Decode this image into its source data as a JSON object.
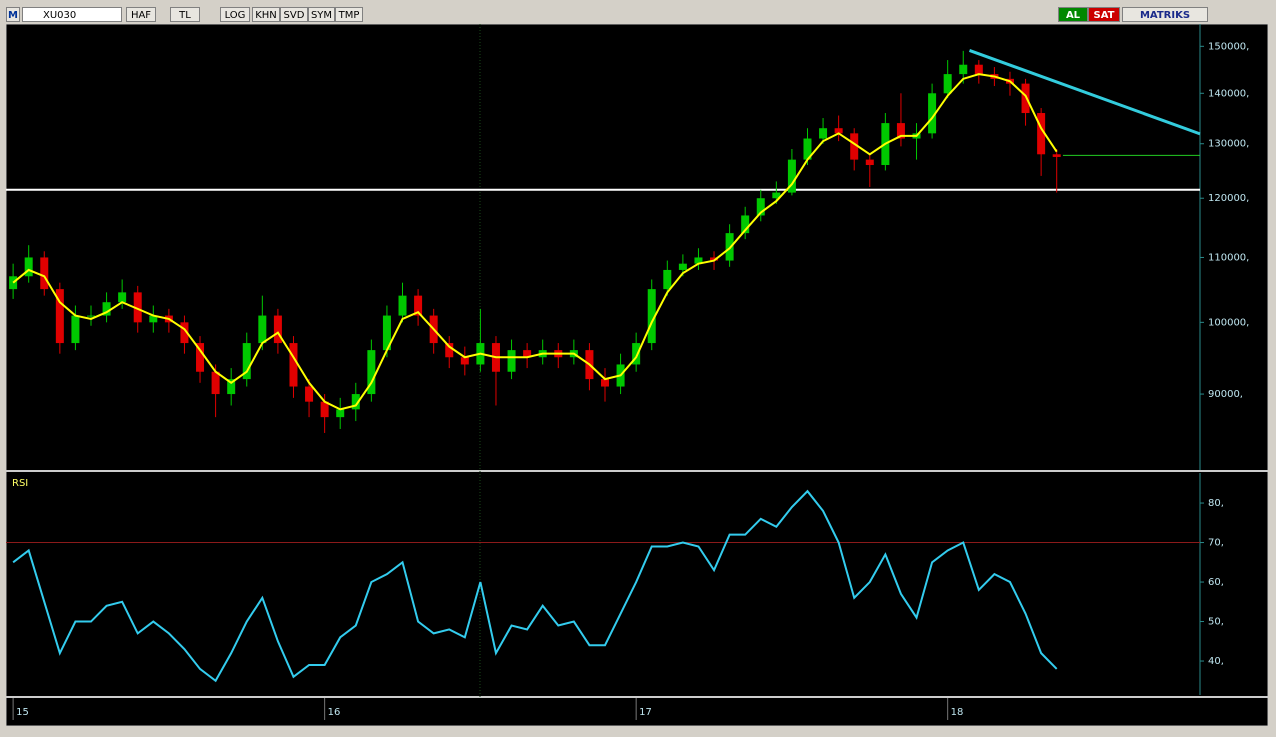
{
  "toolbar": {
    "logo": "M",
    "symbol": "XU030",
    "buttons": [
      "HAF",
      "TL",
      "LOG",
      "KHN",
      "SVD",
      "SYM",
      "TMP"
    ],
    "buy": "AL",
    "sell": "SAT",
    "brand": "MATRIKS"
  },
  "chart_data": [
    {
      "type": "candlestick",
      "log": true,
      "x": [
        15.0,
        15.05,
        15.1,
        15.15,
        15.2,
        15.25,
        15.3,
        15.35,
        15.4,
        15.45,
        15.5,
        15.55,
        15.6,
        15.65,
        15.7,
        15.75,
        15.8,
        15.85,
        15.9,
        15.95,
        16.0,
        16.05,
        16.1,
        16.15,
        16.2,
        16.25,
        16.3,
        16.35,
        16.4,
        16.45,
        16.5,
        16.55,
        16.6,
        16.65,
        16.7,
        16.75,
        16.8,
        16.85,
        16.9,
        16.95,
        17.0,
        17.05,
        17.1,
        17.15,
        17.2,
        17.25,
        17.3,
        17.35,
        17.4,
        17.45,
        17.5,
        17.55,
        17.6,
        17.65,
        17.7,
        17.75,
        17.8,
        17.85,
        17.9,
        17.95,
        18.0,
        18.05,
        18.1,
        18.15,
        18.2,
        18.25,
        18.3,
        18.35
      ],
      "open": [
        105000,
        107000,
        110000,
        105000,
        97000,
        101000,
        101000,
        103000,
        104500,
        100000,
        101000,
        100000,
        97000,
        93000,
        90000,
        92000,
        97000,
        101000,
        97000,
        91000,
        89000,
        87000,
        88000,
        90000,
        96000,
        101000,
        104000,
        101000,
        97000,
        95000,
        94000,
        97000,
        93000,
        96000,
        95000,
        96000,
        95000,
        96000,
        92000,
        91000,
        94000,
        97000,
        105000,
        108000,
        109000,
        110000,
        109500,
        114000,
        117000,
        120000,
        121000,
        127000,
        131000,
        133000,
        132000,
        127000,
        126000,
        134000,
        131000,
        132000,
        140000,
        144000,
        146000,
        144000,
        143000,
        142000,
        136000,
        128000
      ],
      "high": [
        109000,
        112000,
        111000,
        106000,
        102500,
        102500,
        104500,
        106500,
        105500,
        102500,
        102000,
        101000,
        98000,
        94000,
        93500,
        98500,
        104000,
        102000,
        98000,
        92000,
        90000,
        89500,
        91500,
        97500,
        102500,
        106000,
        105000,
        102000,
        98000,
        96500,
        102000,
        98000,
        97500,
        97000,
        97500,
        97000,
        97500,
        97000,
        93500,
        95500,
        98500,
        106500,
        109500,
        110500,
        111500,
        111000,
        115500,
        118500,
        121500,
        123000,
        129000,
        133000,
        135000,
        135500,
        133000,
        128000,
        136000,
        140000,
        134000,
        142000,
        147000,
        149000,
        147000,
        145500,
        144500,
        143000,
        137000,
        129000
      ],
      "low": [
        103500,
        106000,
        104000,
        95500,
        96000,
        99500,
        100000,
        102000,
        98500,
        98500,
        98500,
        95500,
        91500,
        87000,
        88500,
        91000,
        96000,
        95500,
        89500,
        87000,
        85000,
        85500,
        86500,
        89000,
        95000,
        100000,
        99500,
        95500,
        93500,
        92500,
        93000,
        88500,
        92000,
        93500,
        94000,
        93500,
        94000,
        90500,
        89000,
        90000,
        93000,
        96000,
        104000,
        107000,
        108000,
        108000,
        108500,
        113000,
        116000,
        119000,
        120500,
        126000,
        130000,
        130500,
        125000,
        122000,
        125000,
        129500,
        127000,
        131000,
        139000,
        142000,
        142000,
        141500,
        139500,
        133500,
        124000,
        121000
      ],
      "close": [
        107000,
        110000,
        105000,
        97000,
        101000,
        101000,
        103000,
        104500,
        100000,
        101000,
        100000,
        97000,
        93000,
        90000,
        92000,
        97000,
        101000,
        97000,
        91000,
        89000,
        87000,
        88000,
        90000,
        96000,
        101000,
        104000,
        101000,
        97000,
        95000,
        94000,
        97000,
        93000,
        96000,
        95000,
        96000,
        95000,
        96000,
        92000,
        91000,
        94000,
        97000,
        105000,
        108000,
        109000,
        110000,
        109500,
        114000,
        117000,
        120000,
        121000,
        127000,
        131000,
        133000,
        132000,
        127000,
        126000,
        134000,
        131000,
        132000,
        140000,
        144000,
        146000,
        144000,
        143000,
        142000,
        136000,
        128000,
        127500
      ],
      "up_color": "#00c800",
      "down_color": "#e00000",
      "ma": {
        "color": "#ffff00",
        "values": [
          106000,
          108000,
          107000,
          103000,
          101000,
          100500,
          101500,
          103000,
          102000,
          101000,
          100500,
          99000,
          96000,
          93000,
          91500,
          93000,
          97000,
          98500,
          95000,
          91500,
          89000,
          88000,
          88500,
          91500,
          96000,
          100500,
          101500,
          99000,
          96500,
          95000,
          95500,
          95000,
          95000,
          95000,
          95500,
          95500,
          95500,
          94000,
          92000,
          92500,
          95000,
          100000,
          104500,
          107500,
          109000,
          109500,
          111500,
          114500,
          117500,
          119500,
          122500,
          127000,
          130500,
          132000,
          130000,
          128000,
          130000,
          131500,
          131500,
          135000,
          139500,
          143000,
          144000,
          143500,
          142500,
          139500,
          133000,
          128500
        ]
      },
      "hlines": [
        {
          "value": 121500,
          "color": "#ffffff"
        },
        {
          "value": 127800,
          "color": "#22cc22",
          "from": 18.37
        }
      ],
      "trendline": {
        "x": [
          18.07,
          18.81
        ],
        "y": [
          149100,
          131900
        ],
        "color": "#33ccdd"
      },
      "xlim": [
        14.99,
        18.81
      ],
      "ylim": [
        80500,
        155000
      ],
      "yticks": [
        {
          "value": 90000,
          "label": "90000,"
        },
        {
          "value": 100000,
          "label": "100000,"
        },
        {
          "value": 110000,
          "label": "110000,"
        },
        {
          "value": 120000,
          "label": "120000,"
        },
        {
          "value": 130000,
          "label": "130000,"
        },
        {
          "value": 140000,
          "label": "140000,"
        },
        {
          "value": 150000,
          "label": "150000,"
        }
      ],
      "xticks": [
        15,
        16,
        17,
        18
      ]
    },
    {
      "type": "line",
      "title": "RSI",
      "x": [
        15.0,
        15.05,
        15.1,
        15.15,
        15.2,
        15.25,
        15.3,
        15.35,
        15.4,
        15.45,
        15.5,
        15.55,
        15.6,
        15.65,
        15.7,
        15.75,
        15.8,
        15.85,
        15.9,
        15.95,
        16.0,
        16.05,
        16.1,
        16.15,
        16.2,
        16.25,
        16.3,
        16.35,
        16.4,
        16.45,
        16.5,
        16.55,
        16.6,
        16.65,
        16.7,
        16.75,
        16.8,
        16.85,
        16.9,
        16.95,
        17.0,
        17.05,
        17.1,
        17.15,
        17.2,
        17.25,
        17.3,
        17.35,
        17.4,
        17.45,
        17.5,
        17.55,
        17.6,
        17.65,
        17.7,
        17.75,
        17.8,
        17.85,
        17.9,
        17.95,
        18.0,
        18.05,
        18.1,
        18.15,
        18.2,
        18.25,
        18.3,
        18.35
      ],
      "series": [
        {
          "color": "#33ccee",
          "values": [
            65,
            68,
            55,
            42,
            50,
            50,
            54,
            55,
            47,
            50,
            47,
            43,
            38,
            35,
            42,
            50,
            56,
            45,
            36,
            39,
            39,
            46,
            49,
            60,
            62,
            65,
            50,
            47,
            48,
            46,
            60,
            42,
            49,
            48,
            54,
            49,
            50,
            44,
            44,
            52,
            60,
            69,
            69,
            70,
            69,
            63,
            72,
            72,
            76,
            74,
            79,
            83,
            78,
            70,
            56,
            60,
            67,
            57,
            51,
            65,
            68,
            70,
            58,
            62,
            60,
            52,
            42,
            38
          ]
        }
      ],
      "refline": {
        "value": 70,
        "color": "#8b1a1a"
      },
      "xlim": [
        14.99,
        18.81
      ],
      "ylim": [
        31.4,
        87.1
      ],
      "yticks": [
        {
          "value": 40,
          "label": "40,"
        },
        {
          "value": 50,
          "label": "50,"
        },
        {
          "value": 60,
          "label": "60,"
        },
        {
          "value": 70,
          "label": "70,"
        },
        {
          "value": 80,
          "label": "80,"
        }
      ]
    }
  ]
}
